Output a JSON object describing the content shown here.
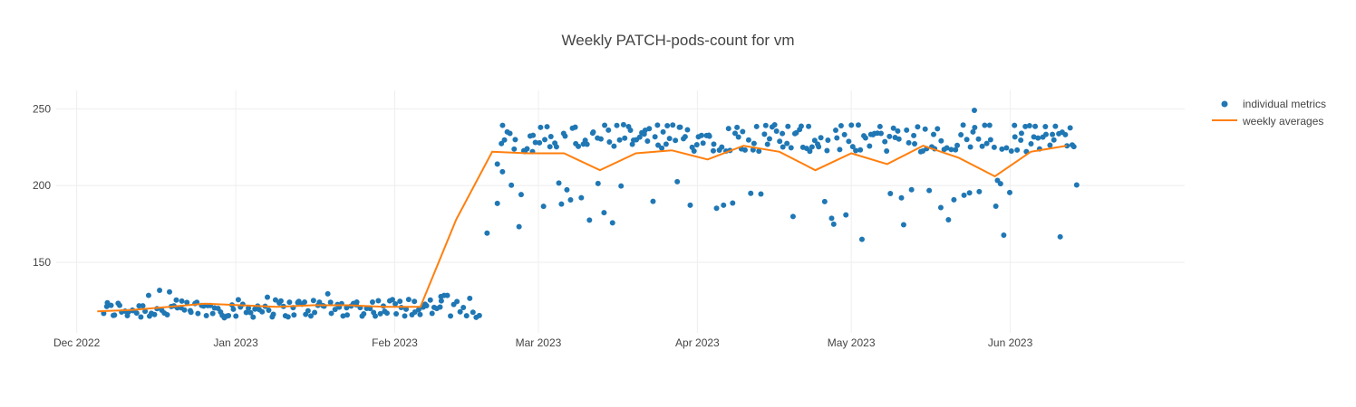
{
  "chart_data": {
    "type": "scatter",
    "title": "Weekly PATCH-pods-count for vm",
    "xlabel": "",
    "ylabel": "",
    "xlim": [
      "2022-11-27",
      "2023-07-05"
    ],
    "ylim": [
      104,
      262
    ],
    "x_ticks": [
      {
        "date": "2022-12-01",
        "label": "Dec 2022"
      },
      {
        "date": "2023-01-01",
        "label": "Jan 2023"
      },
      {
        "date": "2023-02-01",
        "label": "Feb 2023"
      },
      {
        "date": "2023-03-01",
        "label": "Mar 2023"
      },
      {
        "date": "2023-04-01",
        "label": "Apr 2023"
      },
      {
        "date": "2023-05-01",
        "label": "May 2023"
      },
      {
        "date": "2023-06-01",
        "label": "Jun 2023"
      }
    ],
    "y_ticks": [
      {
        "value": 150,
        "label": "150"
      },
      {
        "value": 200,
        "label": "200"
      },
      {
        "value": 250,
        "label": "250"
      }
    ],
    "grid": true,
    "legend_position": "top-right",
    "colors": {
      "metrics": "#1f77b4",
      "averages": "#ff7f0e",
      "title": "#444444",
      "grid": "#eeeeee"
    },
    "series": [
      {
        "name": "individual metrics",
        "type": "scatter",
        "generated": true,
        "note": "hundreds of points; approximate clusters reproduced by script"
      },
      {
        "name": "weekly averages",
        "type": "line",
        "x": [
          "2022-12-05",
          "2022-12-12",
          "2022-12-19",
          "2022-12-26",
          "2023-01-02",
          "2023-01-09",
          "2023-01-16",
          "2023-01-23",
          "2023-01-30",
          "2023-02-06",
          "2023-02-13",
          "2023-02-20",
          "2023-02-27",
          "2023-03-06",
          "2023-03-13",
          "2023-03-20",
          "2023-03-27",
          "2023-04-03",
          "2023-04-10",
          "2023-04-17",
          "2023-04-24",
          "2023-05-01",
          "2023-05-08",
          "2023-05-15",
          "2023-05-22",
          "2023-05-29",
          "2023-06-05",
          "2023-06-12"
        ],
        "values": [
          118,
          119,
          121,
          123,
          122,
          121,
          122,
          122,
          121,
          121,
          178,
          222,
          221,
          221,
          210,
          221,
          223,
          217,
          226,
          222,
          210,
          221,
          214,
          226,
          218,
          206,
          222,
          226
        ]
      }
    ],
    "legend": [
      {
        "label": "individual metrics",
        "marker": "dot"
      },
      {
        "label": "weekly averages",
        "marker": "line"
      }
    ]
  }
}
